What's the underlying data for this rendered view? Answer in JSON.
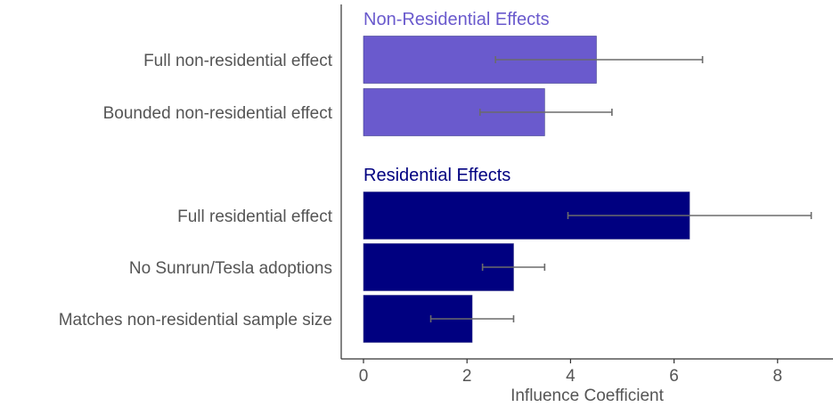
{
  "chart_data": {
    "type": "bar",
    "orientation": "horizontal",
    "xlabel": "Influence Coefficient",
    "xlim": [
      -0.45,
      9.2
    ],
    "xticks": [
      0,
      2,
      4,
      6,
      8
    ],
    "grid": false,
    "groups": [
      {
        "name": "Non-Residential Effects",
        "color": "#6a5acd",
        "bars": [
          {
            "label": "Full non-residential effect",
            "value": 4.5,
            "err_low": 2.55,
            "err_high": 6.55
          },
          {
            "label": "Bounded non-residential effect",
            "value": 3.5,
            "err_low": 2.25,
            "err_high": 4.8
          }
        ]
      },
      {
        "name": "Residential Effects",
        "color": "#000080",
        "bars": [
          {
            "label": "Full residential effect",
            "value": 6.3,
            "err_low": 3.95,
            "err_high": 8.65
          },
          {
            "label": "No Sunrun/Tesla adoptions",
            "value": 2.9,
            "err_low": 2.3,
            "err_high": 3.5
          },
          {
            "label": "Matches non-residential sample size",
            "value": 2.1,
            "err_low": 1.3,
            "err_high": 2.9
          }
        ]
      }
    ]
  }
}
